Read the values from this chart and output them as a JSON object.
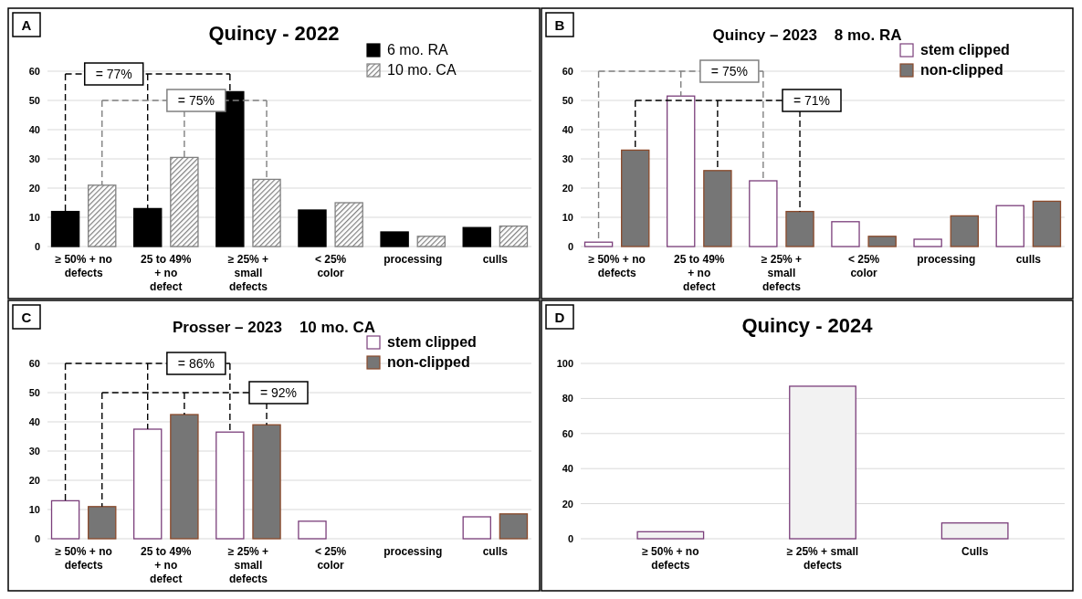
{
  "chart_data": [
    {
      "type": "bar",
      "title": "Quincy - 2022",
      "categories": [
        "≥ 50% + no defects",
        "25 to 49% + no defect",
        "≥ 25% + small defects",
        "< 25% color",
        "processing",
        "culls"
      ],
      "series": [
        {
          "name": "6 mo. RA",
          "color": "#000000",
          "values": [
            12,
            13,
            53,
            12.5,
            5,
            6.5
          ]
        },
        {
          "name": "10 mo. CA",
          "color": "#808080",
          "values": [
            21,
            30.5,
            23,
            15,
            3.5,
            7
          ]
        }
      ],
      "ylim": [
        0,
        60
      ],
      "yticks": [
        0,
        10,
        20,
        30,
        40,
        50,
        60
      ],
      "grid": "y",
      "legend": "top right",
      "annotations": [
        "A",
        "= 77%",
        "= 75%"
      ]
    },
    {
      "type": "bar",
      "title": "Quincy – 2023    8 mo. RA",
      "categories": [
        "≥ 50% + no defects",
        "25 to 49% + no defect",
        "≥ 25% + small defects",
        "< 25% color",
        "processing",
        "culls"
      ],
      "series": [
        {
          "name": "stem clipped",
          "color": "#ffffff",
          "values": [
            1.5,
            51.5,
            22.5,
            8.5,
            2.5,
            14
          ]
        },
        {
          "name": "non-clipped",
          "color": "#767676",
          "values": [
            33,
            26,
            12,
            3.5,
            10.5,
            15.5
          ]
        }
      ],
      "ylim": [
        0,
        60
      ],
      "yticks": [
        0,
        10,
        20,
        30,
        40,
        50,
        60
      ],
      "grid": "y",
      "legend": "top right",
      "annotations": [
        "B",
        "= 75%",
        "= 71%"
      ]
    },
    {
      "type": "bar",
      "title": "Prosser – 2023    10 mo. CA",
      "categories": [
        "≥ 50% + no defects",
        "25 to 49% + no defect",
        "≥ 25% + small defects",
        "< 25% color",
        "processing",
        "culls"
      ],
      "series": [
        {
          "name": "stem clipped",
          "color": "#ffffff",
          "values": [
            13,
            37.5,
            36.5,
            6,
            0,
            7.5
          ]
        },
        {
          "name": "non-clipped",
          "color": "#767676",
          "values": [
            11,
            42.5,
            39,
            0,
            0,
            8.5
          ]
        }
      ],
      "ylim": [
        0,
        60
      ],
      "yticks": [
        0,
        10,
        20,
        30,
        40,
        50,
        60
      ],
      "grid": "y",
      "legend": "top right",
      "annotations": [
        "C",
        "= 86%",
        "= 92%"
      ]
    },
    {
      "type": "bar",
      "title": "Quincy - 2024",
      "categories": [
        "≥ 50% + no defects",
        "≥ 25% + small defects",
        "Culls"
      ],
      "values": [
        4,
        87,
        9
      ],
      "color": "#f2f2f2",
      "ylim": [
        0,
        100
      ],
      "yticks": [
        0,
        20,
        40,
        60,
        80,
        100
      ],
      "grid": "y",
      "annotations": [
        "D"
      ]
    }
  ]
}
